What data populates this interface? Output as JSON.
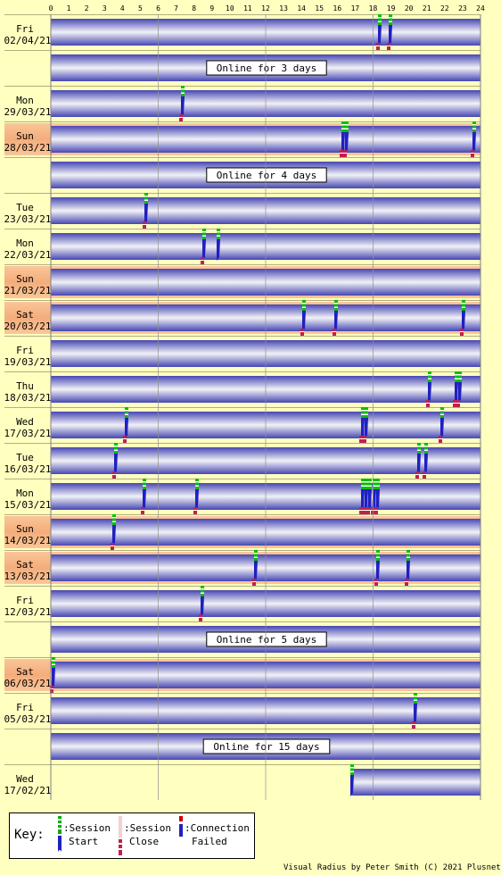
{
  "chart_data": {
    "type": "timeline",
    "x_axis": {
      "min": 0,
      "max": 24,
      "ticks": [
        0,
        1,
        2,
        3,
        4,
        5,
        6,
        7,
        8,
        9,
        10,
        11,
        12,
        13,
        14,
        15,
        16,
        17,
        18,
        19,
        20,
        21,
        22,
        23,
        24
      ]
    },
    "rows": [
      {
        "kind": "day",
        "day": "Fri",
        "date": "02/04/21",
        "weekend": false,
        "coverage": [
          [
            0,
            24
          ]
        ],
        "markers": [
          {
            "t": 18.3,
            "type": "start"
          },
          {
            "t": 18.9,
            "type": "start"
          }
        ]
      },
      {
        "kind": "gap",
        "label": "Online for 3 days"
      },
      {
        "kind": "day",
        "day": "Mon",
        "date": "29/03/21",
        "weekend": false,
        "coverage": [
          [
            0,
            24
          ]
        ],
        "markers": [
          {
            "t": 7.3,
            "type": "start"
          }
        ]
      },
      {
        "kind": "day",
        "day": "Sun",
        "date": "28/03/21",
        "weekend": true,
        "coverage": [
          [
            0,
            24
          ]
        ],
        "markers": [
          {
            "t": 16.3,
            "type": "start"
          },
          {
            "t": 16.5,
            "type": "start"
          },
          {
            "t": 23.6,
            "type": "start"
          }
        ]
      },
      {
        "kind": "gap",
        "label": "Online for 4 days"
      },
      {
        "kind": "day",
        "day": "Tue",
        "date": "23/03/21",
        "weekend": false,
        "coverage": [
          [
            0,
            24
          ]
        ],
        "markers": [
          {
            "t": 5.3,
            "type": "start"
          }
        ]
      },
      {
        "kind": "day",
        "day": "Mon",
        "date": "22/03/21",
        "weekend": false,
        "coverage": [
          [
            0,
            24
          ]
        ],
        "markers": [
          {
            "t": 8.5,
            "type": "start"
          },
          {
            "t": 9.3,
            "type": "session_gap"
          }
        ]
      },
      {
        "kind": "day",
        "day": "Sun",
        "date": "21/03/21",
        "weekend": true,
        "coverage": [
          [
            0,
            24
          ]
        ],
        "markers": []
      },
      {
        "kind": "day",
        "day": "Sat",
        "date": "20/03/21",
        "weekend": true,
        "coverage": [
          [
            0,
            24
          ]
        ],
        "markers": [
          {
            "t": 14.1,
            "type": "start"
          },
          {
            "t": 15.9,
            "type": "start"
          },
          {
            "t": 23.0,
            "type": "start"
          }
        ]
      },
      {
        "kind": "day",
        "day": "Fri",
        "date": "19/03/21",
        "weekend": false,
        "coverage": [
          [
            0,
            24
          ]
        ],
        "markers": []
      },
      {
        "kind": "day",
        "day": "Thu",
        "date": "18/03/21",
        "weekend": false,
        "coverage": [
          [
            0,
            24
          ]
        ],
        "markers": [
          {
            "t": 21.1,
            "type": "start"
          },
          {
            "t": 22.6,
            "type": "start"
          },
          {
            "t": 22.8,
            "type": "start"
          }
        ]
      },
      {
        "kind": "day",
        "day": "Wed",
        "date": "17/03/21",
        "weekend": false,
        "coverage": [
          [
            0,
            24
          ]
        ],
        "markers": [
          {
            "t": 4.2,
            "type": "start"
          },
          {
            "t": 17.4,
            "type": "start"
          },
          {
            "t": 17.6,
            "type": "start"
          },
          {
            "t": 21.8,
            "type": "start"
          }
        ]
      },
      {
        "kind": "day",
        "day": "Tue",
        "date": "16/03/21",
        "weekend": false,
        "coverage": [
          [
            0,
            24
          ]
        ],
        "markers": [
          {
            "t": 3.6,
            "type": "start"
          },
          {
            "t": 20.5,
            "type": "start"
          },
          {
            "t": 20.9,
            "type": "start"
          }
        ]
      },
      {
        "kind": "day",
        "day": "Mon",
        "date": "15/03/21",
        "weekend": false,
        "coverage": [
          [
            0,
            24
          ]
        ],
        "markers": [
          {
            "t": 5.2,
            "type": "start"
          },
          {
            "t": 8.1,
            "type": "start"
          },
          {
            "t": 17.4,
            "type": "start"
          },
          {
            "t": 17.6,
            "type": "start"
          },
          {
            "t": 17.8,
            "type": "start"
          },
          {
            "t": 18.0,
            "type": "start"
          },
          {
            "t": 18.2,
            "type": "start"
          }
        ]
      },
      {
        "kind": "day",
        "day": "Sun",
        "date": "14/03/21",
        "weekend": true,
        "coverage": [
          [
            0,
            24
          ]
        ],
        "markers": [
          {
            "t": 3.5,
            "type": "start"
          }
        ]
      },
      {
        "kind": "day",
        "day": "Sat",
        "date": "13/03/21",
        "weekend": true,
        "coverage": [
          [
            0,
            24
          ]
        ],
        "markers": [
          {
            "t": 11.4,
            "type": "start"
          },
          {
            "t": 18.2,
            "type": "start"
          },
          {
            "t": 19.9,
            "type": "start"
          }
        ]
      },
      {
        "kind": "day",
        "day": "Fri",
        "date": "12/03/21",
        "weekend": false,
        "coverage": [
          [
            0,
            24
          ]
        ],
        "markers": [
          {
            "t": 8.4,
            "type": "start"
          }
        ]
      },
      {
        "kind": "gap",
        "label": "Online for 5 days"
      },
      {
        "kind": "day",
        "day": "Sat",
        "date": "06/03/21",
        "weekend": true,
        "coverage": [
          [
            0,
            24
          ]
        ],
        "markers": [
          {
            "t": 0.1,
            "type": "start"
          }
        ]
      },
      {
        "kind": "day",
        "day": "Fri",
        "date": "05/03/21",
        "weekend": false,
        "coverage": [
          [
            0,
            24
          ]
        ],
        "markers": [
          {
            "t": 20.3,
            "type": "start"
          }
        ]
      },
      {
        "kind": "gap",
        "label": "Online for 15 days"
      },
      {
        "kind": "day",
        "day": "Wed",
        "date": "17/02/21",
        "weekend": false,
        "coverage": [
          [
            16.8,
            24
          ]
        ],
        "markers": [
          {
            "t": 16.8,
            "type": "first_start"
          }
        ]
      }
    ]
  },
  "key": {
    "title": "Key:",
    "session_start": {
      "line1": ":Session",
      "line2": "Start"
    },
    "session_close": {
      "line1": ":Session",
      "line2": "Close"
    },
    "connection_failed": {
      "line1": ":Connection",
      "line2": "Failed"
    }
  },
  "footer": "Visual Radius by Peter Smith (C) 2021 Plusnet",
  "colors": {
    "background": "#ffffc0",
    "weekend": "#f8c090",
    "band_dark": "#4040b0",
    "band_light": "#f0f0f4",
    "grid": "#a0a0a0",
    "marker_green": "#00c000",
    "marker_blue": "#2020c0",
    "marker_red": "#d00000"
  }
}
